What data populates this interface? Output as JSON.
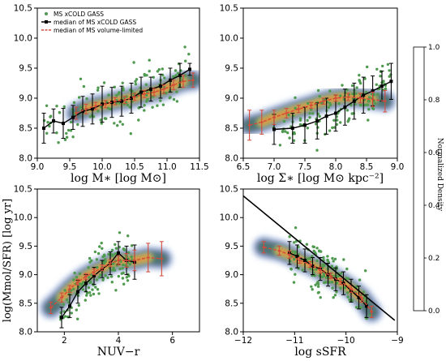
{
  "figure": {
    "colorbar": {
      "label": "Normalized Density",
      "ticks": [
        "0.0",
        "0.2",
        "0.4",
        "0.6",
        "0.8",
        "1.0"
      ],
      "colors": [
        "#f7fbff",
        "#d6e4f2",
        "#aec8e4",
        "#8ea3d4",
        "#7b7fc0",
        "#5a5aa8",
        "#3f6b5e",
        "#6b9f5a",
        "#a4c55b",
        "#d7e254",
        "#f3c846",
        "#ef9a3c",
        "#d9663a"
      ]
    },
    "legend": {
      "entries": [
        "MS xCOLD GASS",
        "median of MS xCOLD GASS",
        "median of MS volume-limited"
      ]
    },
    "colors": {
      "scatter": "#4f9a4f",
      "black_median": "#000000",
      "red_median": "#d44a3a"
    }
  },
  "chart_data": [
    {
      "type": "scatter",
      "panel": "top-left",
      "xlabel": "log M∗ [log M⊙]",
      "ylabel": "",
      "xlim": [
        9.0,
        11.5
      ],
      "ylim": [
        8.0,
        10.5
      ],
      "xticks": [
        "9.0",
        "9.5",
        "10.0",
        "10.5",
        "11.0",
        "11.5"
      ],
      "yticks": [
        "8.0",
        "8.5",
        "9.0",
        "9.5",
        "10.0",
        "10.5"
      ],
      "series": [
        {
          "name": "median of MS xCOLD GASS",
          "x": [
            9.1,
            9.25,
            9.4,
            9.55,
            9.7,
            9.85,
            10.0,
            10.15,
            10.3,
            10.45,
            10.6,
            10.75,
            10.9,
            11.05,
            11.2,
            11.35
          ],
          "y": [
            8.5,
            8.62,
            8.58,
            8.68,
            8.78,
            8.82,
            8.9,
            8.93,
            8.95,
            9.0,
            9.1,
            9.15,
            9.2,
            9.3,
            9.38,
            9.48
          ],
          "err": [
            0.25,
            0.2,
            0.25,
            0.2,
            0.25,
            0.25,
            0.3,
            0.25,
            0.25,
            0.25,
            0.25,
            0.2,
            0.2,
            0.2,
            0.2,
            0.1
          ]
        },
        {
          "name": "median of MS volume-limited",
          "x": [
            9.6,
            9.75,
            9.9,
            10.05,
            10.2,
            10.35,
            10.5,
            10.65,
            10.8,
            10.95,
            11.1,
            11.25,
            11.4
          ],
          "y": [
            8.75,
            8.82,
            8.87,
            8.9,
            8.95,
            8.97,
            9.02,
            9.07,
            9.1,
            9.15,
            9.22,
            9.28,
            9.3
          ],
          "err": [
            0.1,
            0.08,
            0.06,
            0.06,
            0.06,
            0.06,
            0.06,
            0.06,
            0.06,
            0.07,
            0.08,
            0.1,
            0.12
          ]
        }
      ]
    },
    {
      "type": "scatter",
      "panel": "top-right",
      "xlabel": "log Σ∗ [log M⊙ kpc⁻²]",
      "ylabel": "",
      "xlim": [
        6.5,
        9.0
      ],
      "ylim": [
        8.0,
        10.5
      ],
      "xticks": [
        "6.5",
        "7.0",
        "7.5",
        "8.0",
        "8.5",
        "9.0"
      ],
      "yticks": [
        "8.0",
        "8.5",
        "9.0",
        "9.5",
        "10.0",
        "10.5"
      ],
      "series": [
        {
          "name": "median of MS xCOLD GASS",
          "x": [
            7.0,
            7.3,
            7.5,
            7.7,
            7.85,
            8.0,
            8.15,
            8.3,
            8.45,
            8.6,
            8.75,
            8.9
          ],
          "y": [
            8.48,
            8.5,
            8.55,
            8.62,
            8.7,
            8.75,
            8.85,
            8.95,
            9.05,
            9.12,
            9.2,
            9.28
          ],
          "err": [
            0.25,
            0.25,
            0.3,
            0.3,
            0.3,
            0.3,
            0.3,
            0.3,
            0.3,
            0.25,
            0.25,
            0.3
          ]
        },
        {
          "name": "median of MS volume-limited",
          "x": [
            6.6,
            6.8,
            7.0,
            7.2,
            7.4,
            7.6,
            7.8,
            8.0,
            8.2,
            8.4,
            8.6,
            8.8
          ],
          "y": [
            8.55,
            8.6,
            8.68,
            8.75,
            8.82,
            8.88,
            8.95,
            9.0,
            9.02,
            9.0,
            8.98,
            8.95
          ],
          "err": [
            0.25,
            0.2,
            0.12,
            0.08,
            0.06,
            0.05,
            0.05,
            0.05,
            0.06,
            0.08,
            0.12,
            0.18
          ]
        }
      ]
    },
    {
      "type": "scatter",
      "panel": "bottom-left",
      "xlabel": "NUV−r",
      "ylabel": "log(Mmol/SFR) [log yr]",
      "xlim": [
        1.0,
        7.0
      ],
      "ylim": [
        8.0,
        10.5
      ],
      "xticks": [
        "2",
        "4",
        "6"
      ],
      "yticks": [
        "8.0",
        "8.5",
        "9.0",
        "9.5",
        "10.0",
        "10.5"
      ],
      "series": [
        {
          "name": "median of MS xCOLD GASS",
          "x": [
            1.9,
            2.2,
            2.5,
            2.8,
            3.1,
            3.4,
            3.7,
            4.0,
            4.3,
            4.6
          ],
          "y": [
            8.25,
            8.45,
            8.7,
            8.85,
            8.98,
            9.1,
            9.2,
            9.38,
            9.25,
            9.22
          ],
          "err": [
            0.18,
            0.2,
            0.2,
            0.15,
            0.15,
            0.15,
            0.2,
            0.2,
            0.25,
            0.3
          ]
        },
        {
          "name": "median of MS volume-limited",
          "x": [
            1.5,
            1.9,
            2.2,
            2.5,
            2.8,
            3.1,
            3.4,
            3.7,
            4.0,
            4.3,
            4.6,
            5.1,
            5.6
          ],
          "y": [
            8.42,
            8.6,
            8.75,
            8.87,
            8.97,
            9.05,
            9.12,
            9.2,
            9.25,
            9.25,
            9.25,
            9.3,
            9.28
          ],
          "err": [
            0.1,
            0.08,
            0.06,
            0.05,
            0.05,
            0.05,
            0.05,
            0.06,
            0.08,
            0.12,
            0.18,
            0.25,
            0.3
          ]
        }
      ]
    },
    {
      "type": "scatter",
      "panel": "bottom-right",
      "xlabel": "log sSFR",
      "ylabel": "",
      "xlim": [
        -12,
        -9
      ],
      "ylim": [
        8.0,
        10.5
      ],
      "xticks": [
        "−12",
        "−11",
        "−10",
        "−9"
      ],
      "yticks": [
        "8.0",
        "8.5",
        "9.0",
        "9.5",
        "10.0",
        "10.5"
      ],
      "line": {
        "x": [
          -12,
          -9.05
        ],
        "y": [
          10.38,
          8.2
        ]
      },
      "series": [
        {
          "name": "median of MS xCOLD GASS",
          "x": [
            -11.1,
            -10.95,
            -10.8,
            -10.65,
            -10.5,
            -10.35,
            -10.2,
            -10.05,
            -9.9,
            -9.75,
            -9.6
          ],
          "y": [
            9.38,
            9.32,
            9.25,
            9.15,
            9.1,
            9.0,
            8.92,
            8.85,
            8.72,
            8.6,
            8.45
          ],
          "err": [
            0.2,
            0.2,
            0.2,
            0.15,
            0.2,
            0.2,
            0.2,
            0.2,
            0.2,
            0.2,
            0.2
          ]
        },
        {
          "name": "median of MS volume-limited",
          "x": [
            -11.6,
            -11.3,
            -11.1,
            -10.9,
            -10.7,
            -10.5,
            -10.3,
            -10.1,
            -9.9,
            -9.7,
            -9.5
          ],
          "y": [
            9.48,
            9.42,
            9.35,
            9.25,
            9.18,
            9.08,
            8.98,
            8.88,
            8.75,
            8.6,
            8.35
          ],
          "err": [
            0.1,
            0.08,
            0.06,
            0.05,
            0.05,
            0.05,
            0.05,
            0.05,
            0.06,
            0.08,
            0.1
          ]
        }
      ]
    }
  ]
}
